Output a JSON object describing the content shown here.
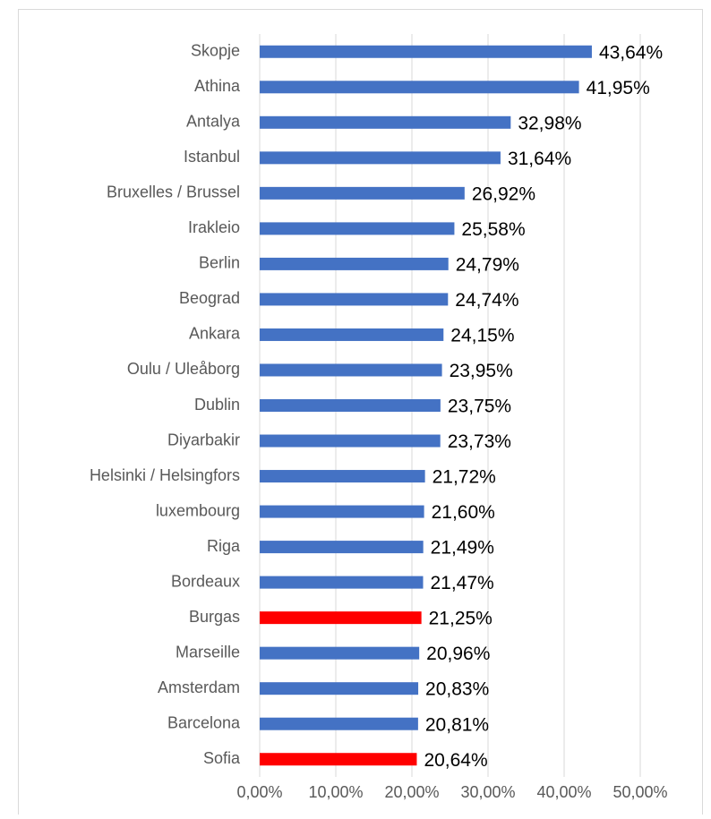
{
  "chart_data": {
    "type": "barh",
    "categories": [
      "Skopje",
      "Athina",
      "Antalya",
      "Istanbul",
      "Bruxelles / Brussel",
      "Irakleio",
      "Berlin",
      "Beograd",
      "Ankara",
      "Oulu / Uleåborg",
      "Dublin",
      "Diyarbakir",
      "Helsinki / Helsingfors",
      "luxembourg",
      "Riga",
      "Bordeaux",
      "Burgas",
      "Marseille",
      "Amsterdam",
      "Barcelona",
      "Sofia"
    ],
    "values": [
      43.64,
      41.95,
      32.98,
      31.64,
      26.92,
      25.58,
      24.79,
      24.74,
      24.15,
      23.95,
      23.75,
      23.73,
      21.72,
      21.6,
      21.49,
      21.47,
      21.25,
      20.96,
      20.83,
      20.81,
      20.64
    ],
    "value_labels": [
      "43,64%",
      "41,95%",
      "32,98%",
      "31,64%",
      "26,92%",
      "25,58%",
      "24,79%",
      "24,74%",
      "24,15%",
      "23,95%",
      "23,75%",
      "23,73%",
      "21,72%",
      "21,60%",
      "21,49%",
      "21,47%",
      "21,25%",
      "20,96%",
      "20,83%",
      "20,81%",
      "20,64%"
    ],
    "colors": [
      "#4472c4",
      "#4472c4",
      "#4472c4",
      "#4472c4",
      "#4472c4",
      "#4472c4",
      "#4472c4",
      "#4472c4",
      "#4472c4",
      "#4472c4",
      "#4472c4",
      "#4472c4",
      "#4472c4",
      "#4472c4",
      "#4472c4",
      "#4472c4",
      "#ff0000",
      "#4472c4",
      "#4472c4",
      "#4472c4",
      "#ff0000"
    ],
    "xlim": [
      0,
      50
    ],
    "xticks": [
      {
        "value": 0,
        "label": "0,00%"
      },
      {
        "value": 10,
        "label": "10,00%"
      },
      {
        "value": 20,
        "label": "20,00%"
      },
      {
        "value": 30,
        "label": "30,00%"
      },
      {
        "value": 40,
        "label": "40,00%"
      },
      {
        "value": 50,
        "label": "50,00%"
      }
    ],
    "grid": true
  }
}
